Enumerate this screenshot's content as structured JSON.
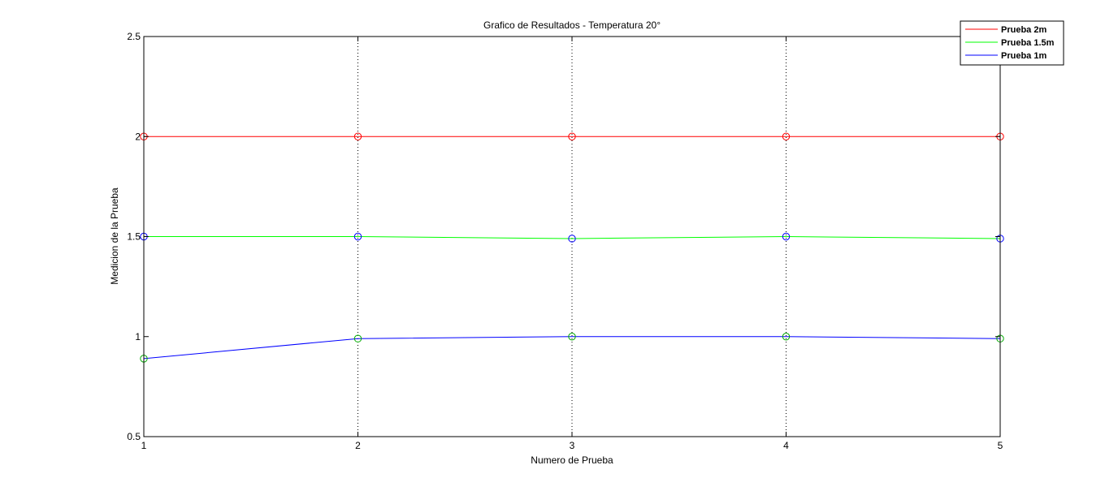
{
  "chart_data": {
    "type": "line",
    "title": "Grafico de Resultados - Temperatura 20°",
    "xlabel": "Numero de Prueba",
    "ylabel": "Medicion de la Prueba",
    "x": [
      1,
      2,
      3,
      4,
      5
    ],
    "xlim": [
      1,
      5
    ],
    "ylim": [
      0.5,
      2.5
    ],
    "xticks": [
      "1",
      "2",
      "3",
      "4",
      "5"
    ],
    "yticks": [
      "0.5",
      "1",
      "1.5",
      "2",
      "2.5"
    ],
    "grid": "vertical-dotted",
    "legend_position": "top-right",
    "series": [
      {
        "name": "Prueba 2m",
        "color": "#ff0000",
        "marker_color": "#ff0000",
        "values": [
          2.0,
          2.0,
          2.0,
          2.0,
          2.0
        ]
      },
      {
        "name": "Prueba 1.5m",
        "color": "#00ff00",
        "marker_color": "#0000ff",
        "values": [
          1.5,
          1.5,
          1.49,
          1.5,
          1.49
        ]
      },
      {
        "name": "Prueba 1m",
        "color": "#0000ff",
        "marker_color": "#00aa00",
        "values": [
          0.89,
          0.99,
          1.0,
          1.0,
          0.99
        ]
      }
    ]
  }
}
